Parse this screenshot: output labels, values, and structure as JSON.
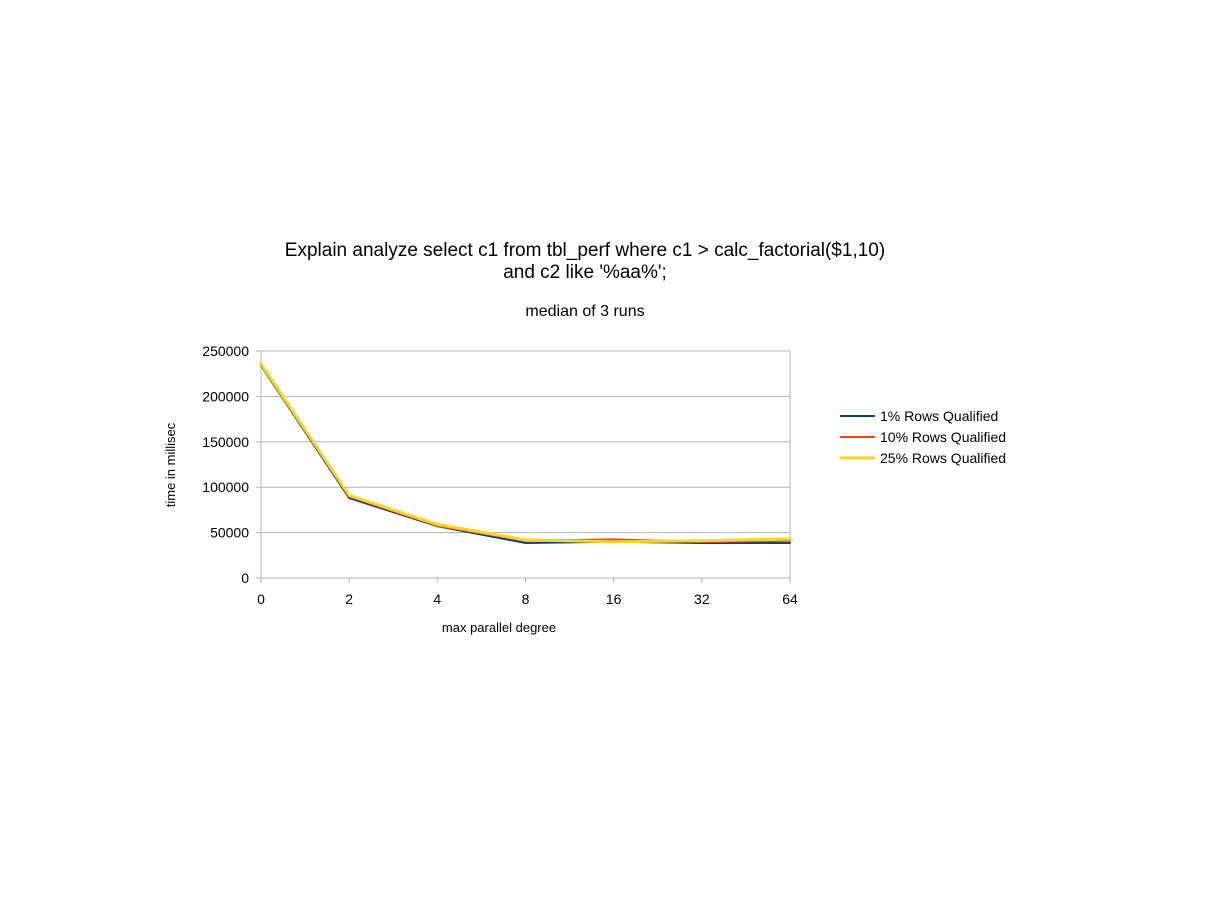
{
  "chart_data": {
    "type": "line",
    "title_lines": [
      "Explain analyze select c1 from tbl_perf where c1 > calc_factorial($1,10)",
      "and c2 like '%aa%';"
    ],
    "subtitle": "median of 3 runs",
    "xlabel": "max parallel degree",
    "ylabel": "time in millisec",
    "categories": [
      "0",
      "2",
      "4",
      "8",
      "16",
      "32",
      "64"
    ],
    "ylim": [
      0,
      250000
    ],
    "yticks": [
      0,
      50000,
      100000,
      150000,
      200000,
      250000
    ],
    "ytick_labels": [
      "0",
      "50000",
      "100000",
      "150000",
      "200000",
      "250000"
    ],
    "grid": "horizontal",
    "legend_position": "right",
    "series": [
      {
        "name": "1% Rows Qualified",
        "color": "#004586",
        "values": [
          234000,
          88000,
          57000,
          38500,
          40000,
          38500,
          38500
        ]
      },
      {
        "name": "10% Rows Qualified",
        "color": "#ff420e",
        "values": [
          235000,
          90000,
          57500,
          41000,
          42500,
          40000,
          41000
        ]
      },
      {
        "name": "25% Rows Qualified",
        "color": "#ffd320",
        "values": [
          236000,
          91000,
          59000,
          42000,
          40000,
          41000,
          43000
        ]
      }
    ]
  }
}
